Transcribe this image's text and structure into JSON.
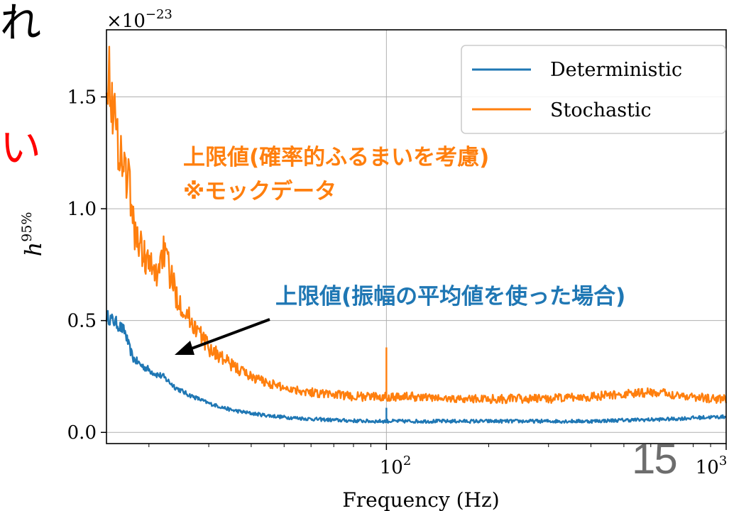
{
  "slide": {
    "number": "15",
    "fragment_top": "れ",
    "fragment_mid": "い"
  },
  "chart_data": {
    "type": "line",
    "xscale": "log",
    "xlim": [
      15,
      1000
    ],
    "ylim": [
      -0.05,
      1.8
    ],
    "grid": true,
    "legend_position": "top-right",
    "xlabel": "Frequency (Hz)",
    "ylabel": "h^95%",
    "ylabel_base": "h",
    "ylabel_sup": "95%",
    "offset_text": "×10",
    "offset_exp": "−23",
    "yticks": [
      "0.0",
      "0.5",
      "1.0",
      "1.5"
    ],
    "ytick_values": [
      0.0,
      0.5,
      1.0,
      1.5
    ],
    "xticks_base": "10",
    "xticks_exp": [
      "2",
      "3"
    ],
    "xtick_values": [
      100,
      1000
    ],
    "series": [
      {
        "name": "Deterministic",
        "color": "#1f77b4",
        "x": [
          15,
          16,
          17,
          17.5,
          18,
          19,
          20,
          21,
          22,
          24,
          26,
          28,
          30,
          35,
          40,
          45,
          50,
          60,
          70,
          80,
          90,
          100,
          120,
          150,
          200,
          300,
          400,
          500,
          600,
          700,
          800,
          900,
          1000
        ],
        "y": [
          0.52,
          0.49,
          0.45,
          0.38,
          0.33,
          0.3,
          0.28,
          0.26,
          0.25,
          0.2,
          0.17,
          0.15,
          0.13,
          0.1,
          0.085,
          0.075,
          0.068,
          0.06,
          0.055,
          0.052,
          0.05,
          0.05,
          0.05,
          0.05,
          0.05,
          0.05,
          0.05,
          0.055,
          0.057,
          0.06,
          0.065,
          0.068,
          0.07
        ]
      },
      {
        "name": "Stochastic",
        "color": "#ff7f0e",
        "x": [
          15,
          15.5,
          16,
          16.5,
          17,
          17.5,
          18,
          19,
          20,
          21,
          22,
          24,
          26,
          28,
          30,
          35,
          40,
          45,
          50,
          60,
          70,
          80,
          90,
          100,
          120,
          150,
          200,
          300,
          400,
          500,
          600,
          700,
          800,
          900,
          1000
        ],
        "y": [
          1.65,
          1.52,
          1.35,
          1.25,
          1.18,
          1.12,
          0.92,
          0.82,
          0.75,
          0.7,
          0.82,
          0.62,
          0.52,
          0.45,
          0.38,
          0.3,
          0.25,
          0.22,
          0.2,
          0.18,
          0.17,
          0.16,
          0.16,
          0.16,
          0.16,
          0.15,
          0.15,
          0.15,
          0.16,
          0.17,
          0.18,
          0.17,
          0.16,
          0.15,
          0.15
        ]
      }
    ],
    "annotations": [
      {
        "text": "上限値(確率的ふるまいを考慮)",
        "color": "#ff7f0e"
      },
      {
        "text": "※モックデータ",
        "color": "#ff7f0e"
      },
      {
        "text": "上限値(振幅の平均値を使った場合)",
        "color": "#1f77b4"
      }
    ],
    "colors": {
      "text_hand": "#000000",
      "text_red": "#ff0000"
    }
  }
}
